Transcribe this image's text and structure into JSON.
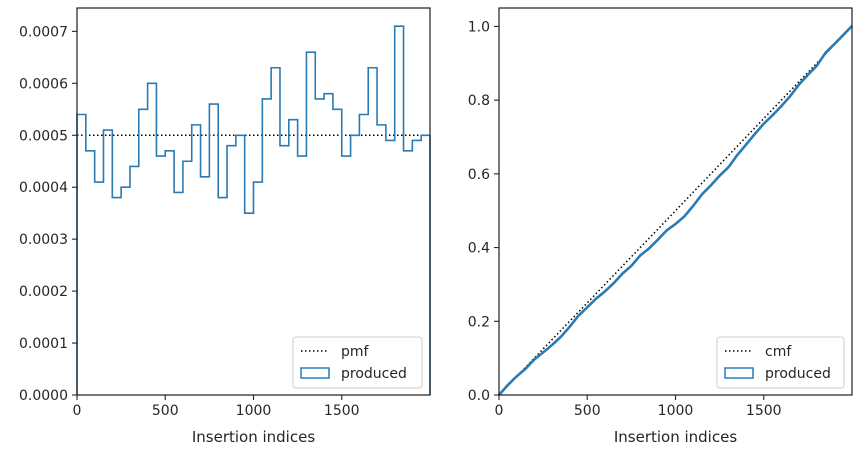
{
  "chart_data": [
    {
      "type": "histogram-step",
      "xlabel": "Insertion indices",
      "ylabel": "",
      "xlim": [
        0,
        2000
      ],
      "ylim": [
        0,
        0.000745
      ],
      "x_ticks": [
        0,
        500,
        1000,
        1500
      ],
      "x_tick_labels": [
        "0",
        "500",
        "1000",
        "1500"
      ],
      "y_ticks": [
        0,
        0.0001,
        0.0002,
        0.0003,
        0.0004,
        0.0005,
        0.0006,
        0.0007
      ],
      "y_tick_labels": [
        "0.0000",
        "0.0001",
        "0.0002",
        "0.0003",
        "0.0004",
        "0.0005",
        "0.0006",
        "0.0007"
      ],
      "legend_position": "lower-right",
      "reference": {
        "name": "pmf",
        "value": 0.0005,
        "style": "dotted",
        "color": "#000000"
      },
      "series": [
        {
          "name": "produced",
          "color": "#2a7bb4",
          "bin_edges": [
            0,
            50,
            100,
            150,
            200,
            250,
            300,
            350,
            400,
            450,
            500,
            550,
            600,
            650,
            700,
            750,
            800,
            850,
            900,
            950,
            1000,
            1050,
            1100,
            1150,
            1200,
            1250,
            1300,
            1350,
            1400,
            1450,
            1500,
            1550,
            1600,
            1650,
            1700,
            1750,
            1800,
            1850,
            1900,
            1950,
            2000
          ],
          "values": [
            0.00054,
            0.00047,
            0.00041,
            0.00051,
            0.00038,
            0.0004,
            0.00044,
            0.00055,
            0.0006,
            0.00046,
            0.00047,
            0.00039,
            0.00045,
            0.00052,
            0.00042,
            0.00056,
            0.00038,
            0.00048,
            0.0005,
            0.00035,
            0.00041,
            0.00057,
            0.00063,
            0.00048,
            0.00053,
            0.00046,
            0.00066,
            0.00057,
            0.00058,
            0.00055,
            0.00046,
            0.0005,
            0.00054,
            0.00063,
            0.00052,
            0.00049,
            0.00071,
            0.00047,
            0.00049,
            0.0005
          ]
        }
      ]
    },
    {
      "type": "line",
      "xlabel": "Insertion indices",
      "ylabel": "",
      "xlim": [
        0,
        2000
      ],
      "ylim": [
        0,
        1.05
      ],
      "x_ticks": [
        0,
        500,
        1000,
        1500
      ],
      "x_tick_labels": [
        "0",
        "500",
        "1000",
        "1500"
      ],
      "y_ticks": [
        0,
        0.2,
        0.4,
        0.6,
        0.8,
        1.0
      ],
      "y_tick_labels": [
        "0.0",
        "0.2",
        "0.4",
        "0.6",
        "0.8",
        "1.0"
      ],
      "legend_position": "lower-right",
      "reference": {
        "name": "cmf",
        "style": "dotted",
        "color": "#000000",
        "from": [
          0,
          0
        ],
        "to": [
          2000,
          1.0
        ]
      },
      "series": [
        {
          "name": "produced",
          "color": "#2a7bb4",
          "derived_from": "cumulative of produced histogram"
        }
      ]
    }
  ]
}
